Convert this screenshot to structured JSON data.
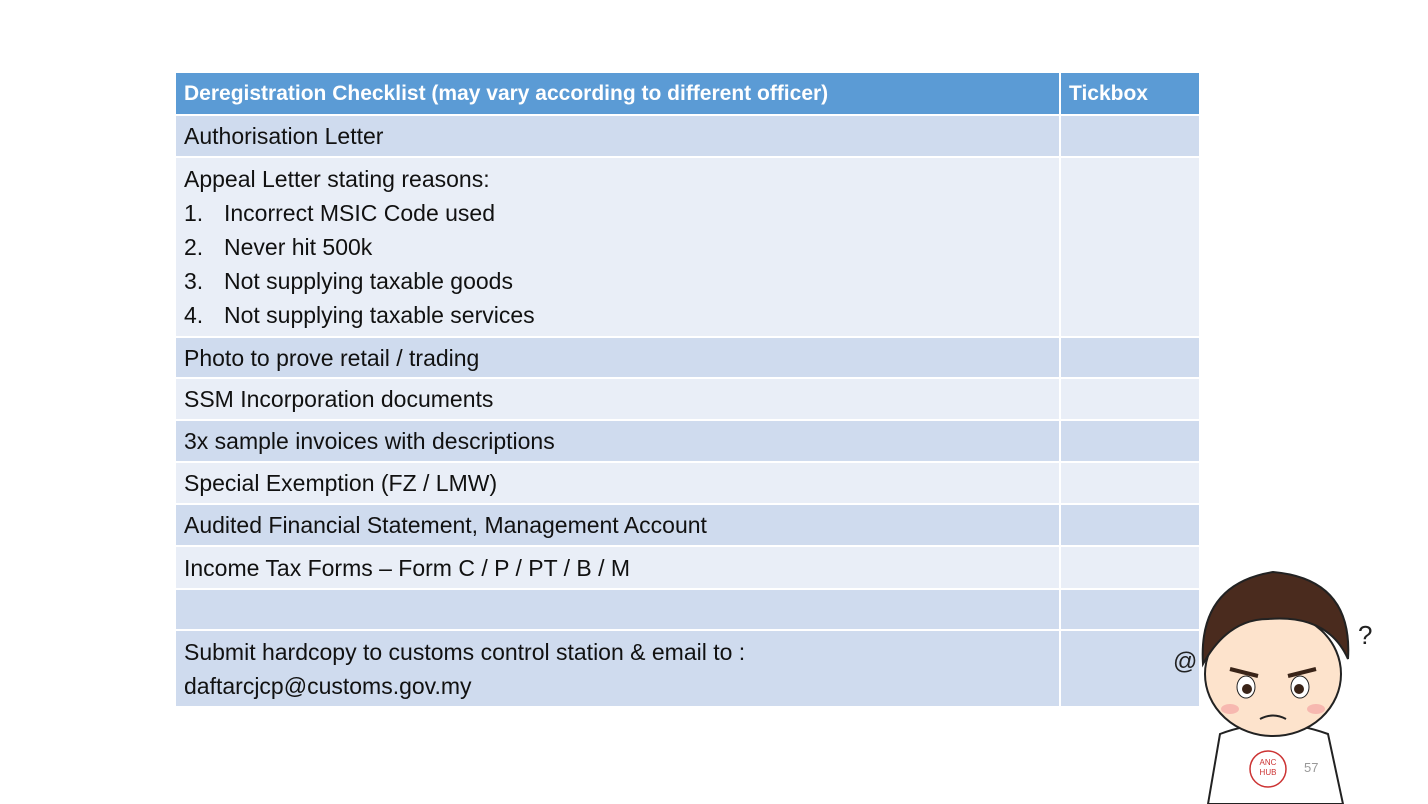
{
  "table": {
    "header": [
      "Deregistration Checklist (may vary according to different officer)",
      "Tickbox"
    ],
    "rows": [
      {
        "text": "Authorisation Letter"
      },
      {
        "text": "Appeal Letter stating reasons:",
        "items": [
          {
            "number": "1.",
            "text": "Incorrect MSIC Code used"
          },
          {
            "number": "2.",
            "text": "Never hit 500k"
          },
          {
            "number": "3.",
            "text": "Not supplying taxable goods"
          },
          {
            "number": "4.",
            "text": "Not supplying taxable services"
          }
        ]
      },
      {
        "text": "Photo to prove retail / trading"
      },
      {
        "text": "SSM Incorporation documents"
      },
      {
        "text": "3x sample invoices with descriptions"
      },
      {
        "text": "Special Exemption (FZ / LMW)"
      },
      {
        "text": "Audited Financial Statement, Management Account"
      },
      {
        "text": "Income Tax Forms – Form C / P / PT / B / M"
      },
      {
        "lines": [
          "Submit hardcopy to customs control station & email to :",
          "daftarcjcp@customs.gov.my"
        ]
      }
    ]
  },
  "logo": [
    "ANC",
    "HUB"
  ],
  "page_number": "57"
}
